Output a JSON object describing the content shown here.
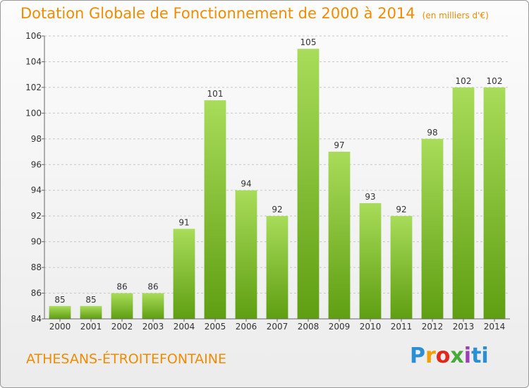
{
  "header": {
    "title": "Dotation Globale de Fonctionnement de 2000 à 2014",
    "subtitle": "(en milliers d'€)"
  },
  "footer": {
    "commune": "ATHESANS-ÉTROITEFONTAINE",
    "logo_letters": [
      "P",
      "r",
      "o",
      "x",
      "i",
      "ti"
    ]
  },
  "colors": {
    "title": "#f08c00",
    "bar_top": "#a8dc5a",
    "bar_bottom": "#5f9e12"
  },
  "chart_data": {
    "type": "bar",
    "title": "Dotation Globale de Fonctionnement de 2000 à 2014",
    "subtitle": "(en milliers d'€)",
    "categories": [
      "2000",
      "2001",
      "2002",
      "2003",
      "2004",
      "2005",
      "2006",
      "2007",
      "2008",
      "2009",
      "2010",
      "2011",
      "2012",
      "2013",
      "2014"
    ],
    "values": [
      85,
      85,
      86,
      86,
      91,
      101,
      94,
      92,
      105,
      97,
      93,
      92,
      98,
      102,
      102
    ],
    "ylim": [
      84,
      106
    ],
    "yticks": [
      84,
      86,
      88,
      90,
      92,
      94,
      96,
      98,
      100,
      102,
      104,
      106
    ],
    "grid": true,
    "legend": "none"
  }
}
